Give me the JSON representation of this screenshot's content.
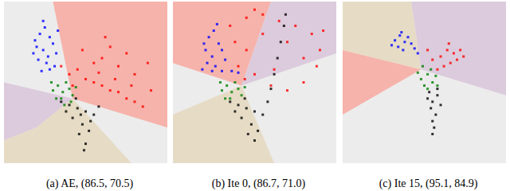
{
  "chart_data": [
    {
      "type": "scatter",
      "title": "(a) AE, (86.5, 70.5)",
      "xlim": [
        0,
        100
      ],
      "ylim": [
        0,
        100
      ],
      "tick_labels": false,
      "grid": false,
      "regions": [
        {
          "color": "#ececec",
          "points": [
            [
              0,
              0
            ],
            [
              100,
              0
            ],
            [
              100,
              100
            ],
            [
              0,
              100
            ]
          ]
        },
        {
          "color": "#f6b3ab",
          "points": [
            [
              30,
              100
            ],
            [
              100,
              100
            ],
            [
              100,
              22
            ],
            [
              42,
              40
            ]
          ]
        },
        {
          "color": "#dccbdc",
          "points": [
            [
              0,
              50
            ],
            [
              42,
              40
            ],
            [
              20,
              22
            ],
            [
              0,
              14
            ]
          ]
        },
        {
          "color": "#e6dcc6",
          "points": [
            [
              0,
              14
            ],
            [
              20,
              22
            ],
            [
              42,
              40
            ],
            [
              78,
              0
            ],
            [
              0,
              0
            ]
          ]
        }
      ],
      "series": [
        {
          "color": "#0000ff",
          "values": [
            [
              22,
              80
            ],
            [
              25,
              84
            ],
            [
              28,
              78
            ],
            [
              20,
              72
            ],
            [
              24,
              70
            ],
            [
              30,
              74
            ],
            [
              21,
              64
            ],
            [
              26,
              62
            ],
            [
              32,
              68
            ],
            [
              23,
              57
            ],
            [
              28,
              58
            ],
            [
              33,
              82
            ],
            [
              19,
              76
            ],
            [
              27,
              66
            ],
            [
              31,
              60
            ],
            [
              24,
              88
            ],
            [
              18,
              68
            ]
          ]
        },
        {
          "color": "#ff0000",
          "values": [
            [
              35,
              60
            ],
            [
              40,
              55
            ],
            [
              45,
              58
            ],
            [
              50,
              52
            ],
            [
              55,
              50
            ],
            [
              60,
              48
            ],
            [
              65,
              45
            ],
            [
              70,
              44
            ],
            [
              75,
              40
            ],
            [
              80,
              38
            ],
            [
              55,
              62
            ],
            [
              60,
              65
            ],
            [
              70,
              60
            ],
            [
              80,
              55
            ],
            [
              90,
              45
            ],
            [
              85,
              35
            ],
            [
              48,
              70
            ],
            [
              65,
              72
            ],
            [
              75,
              68
            ],
            [
              42,
              48
            ],
            [
              88,
              62
            ],
            [
              58,
              56
            ],
            [
              68,
              52
            ],
            [
              78,
              48
            ],
            [
              62,
              78
            ]
          ]
        },
        {
          "color": "#008000",
          "values": [
            [
              30,
              45
            ],
            [
              33,
              48
            ],
            [
              36,
              44
            ],
            [
              40,
              46
            ],
            [
              35,
              40
            ],
            [
              38,
              50
            ],
            [
              42,
              42
            ],
            [
              32,
              40
            ],
            [
              44,
              47
            ],
            [
              29,
              50
            ],
            [
              37,
              36
            ],
            [
              41,
              38
            ]
          ]
        },
        {
          "color": "#000000",
          "values": [
            [
              35,
              38
            ],
            [
              40,
              36
            ],
            [
              45,
              34
            ],
            [
              50,
              32
            ],
            [
              55,
              30
            ],
            [
              42,
              28
            ],
            [
              48,
              24
            ],
            [
              52,
              20
            ],
            [
              46,
              18
            ],
            [
              50,
              12
            ],
            [
              38,
              32
            ],
            [
              58,
              35
            ],
            [
              44,
              40
            ],
            [
              53,
              26
            ],
            [
              49,
              8
            ],
            [
              47,
              30
            ]
          ]
        }
      ]
    },
    {
      "type": "scatter",
      "title": "(b) Ite 0, (86.7, 71.0)",
      "xlim": [
        0,
        100
      ],
      "ylim": [
        0,
        100
      ],
      "tick_labels": false,
      "grid": false,
      "regions": [
        {
          "color": "#ececec",
          "points": [
            [
              0,
              0
            ],
            [
              100,
              0
            ],
            [
              100,
              100
            ],
            [
              0,
              100
            ]
          ]
        },
        {
          "color": "#f6b3ab",
          "points": [
            [
              0,
              100
            ],
            [
              60,
              100
            ],
            [
              42,
              48
            ],
            [
              0,
              62
            ]
          ]
        },
        {
          "color": "#dccbdc",
          "points": [
            [
              60,
              100
            ],
            [
              100,
              100
            ],
            [
              100,
              68
            ],
            [
              42,
              48
            ]
          ]
        },
        {
          "color": "#e6dcc6",
          "points": [
            [
              0,
              30
            ],
            [
              42,
              48
            ],
            [
              62,
              0
            ],
            [
              0,
              0
            ]
          ]
        }
      ],
      "series": [
        {
          "color": "#0000ff",
          "values": [
            [
              22,
              78
            ],
            [
              25,
              82
            ],
            [
              28,
              74
            ],
            [
              20,
              70
            ],
            [
              24,
              66
            ],
            [
              30,
              70
            ],
            [
              21,
              62
            ],
            [
              26,
              60
            ],
            [
              32,
              64
            ],
            [
              18,
              58
            ],
            [
              24,
              57
            ],
            [
              30,
              57
            ],
            [
              36,
              57
            ],
            [
              40,
              56
            ],
            [
              27,
              86
            ],
            [
              19,
              74
            ]
          ]
        },
        {
          "color": "#ff0000",
          "values": [
            [
              35,
              85
            ],
            [
              45,
              90
            ],
            [
              55,
              92
            ],
            [
              65,
              88
            ],
            [
              75,
              85
            ],
            [
              85,
              80
            ],
            [
              90,
              70
            ],
            [
              88,
              60
            ],
            [
              80,
              50
            ],
            [
              70,
              45
            ],
            [
              60,
              48
            ],
            [
              50,
              55
            ],
            [
              40,
              60
            ],
            [
              38,
              75
            ],
            [
              45,
              70
            ],
            [
              55,
              80
            ],
            [
              70,
              75
            ],
            [
              80,
              65
            ],
            [
              50,
              95
            ],
            [
              92,
              82
            ],
            [
              62,
              58
            ],
            [
              44,
              52
            ]
          ]
        },
        {
          "color": "#008000",
          "values": [
            [
              30,
              45
            ],
            [
              33,
              48
            ],
            [
              36,
              44
            ],
            [
              40,
              46
            ],
            [
              35,
              40
            ],
            [
              38,
              50
            ],
            [
              42,
              42
            ],
            [
              32,
              40
            ],
            [
              44,
              47
            ],
            [
              29,
              50
            ]
          ]
        },
        {
          "color": "#000000",
          "values": [
            [
              35,
              38
            ],
            [
              40,
              36
            ],
            [
              45,
              34
            ],
            [
              50,
              32
            ],
            [
              55,
              30
            ],
            [
              42,
              28
            ],
            [
              48,
              24
            ],
            [
              52,
              20
            ],
            [
              46,
              18
            ],
            [
              50,
              14
            ],
            [
              38,
              32
            ],
            [
              58,
              38
            ],
            [
              44,
              40
            ],
            [
              62,
              55
            ],
            [
              64,
              65
            ],
            [
              66,
              75
            ],
            [
              68,
              85
            ],
            [
              69,
              92
            ],
            [
              60,
              46
            ]
          ]
        }
      ]
    },
    {
      "type": "scatter",
      "title": "(c) Ite 15, (95.1, 84.9)",
      "xlim": [
        0,
        100
      ],
      "ylim": [
        0,
        100
      ],
      "tick_labels": false,
      "grid": false,
      "regions": [
        {
          "color": "#ececec",
          "points": [
            [
              0,
              0
            ],
            [
              100,
              0
            ],
            [
              100,
              100
            ],
            [
              0,
              100
            ]
          ]
        },
        {
          "color": "#e6dcc6",
          "points": [
            [
              0,
              100
            ],
            [
              42,
              100
            ],
            [
              48,
              58
            ],
            [
              0,
              70
            ]
          ]
        },
        {
          "color": "#dccbdc",
          "points": [
            [
              42,
              100
            ],
            [
              100,
              100
            ],
            [
              100,
              42
            ],
            [
              48,
              58
            ]
          ]
        },
        {
          "color": "#f6b3ab",
          "points": [
            [
              0,
              70
            ],
            [
              48,
              58
            ],
            [
              0,
              30
            ]
          ]
        }
      ],
      "series": [
        {
          "color": "#0000ff",
          "values": [
            [
              32,
              76
            ],
            [
              35,
              79
            ],
            [
              38,
              75
            ],
            [
              34,
              72
            ],
            [
              40,
              78
            ],
            [
              37,
              70
            ],
            [
              42,
              74
            ],
            [
              30,
              73
            ],
            [
              44,
              71
            ],
            [
              36,
              81
            ],
            [
              46,
              68
            ]
          ]
        },
        {
          "color": "#ff0000",
          "values": [
            [
              60,
              66
            ],
            [
              64,
              70
            ],
            [
              68,
              68
            ],
            [
              66,
              62
            ],
            [
              70,
              64
            ],
            [
              62,
              60
            ],
            [
              72,
              70
            ],
            [
              58,
              58
            ],
            [
              74,
              66
            ],
            [
              65,
              74
            ],
            [
              55,
              64
            ],
            [
              52,
              70
            ]
          ]
        },
        {
          "color": "#008000",
          "values": [
            [
              48,
              52
            ],
            [
              52,
              55
            ],
            [
              55,
              50
            ],
            [
              50,
              48
            ],
            [
              54,
              58
            ],
            [
              57,
              54
            ],
            [
              46,
              56
            ],
            [
              52,
              46
            ],
            [
              58,
              48
            ],
            [
              49,
              60
            ]
          ]
        },
        {
          "color": "#000000",
          "values": [
            [
              52,
              40
            ],
            [
              55,
              38
            ],
            [
              58,
              42
            ],
            [
              54,
              34
            ],
            [
              57,
              30
            ],
            [
              55,
              26
            ],
            [
              56,
              22
            ],
            [
              53,
              44
            ],
            [
              60,
              36
            ],
            [
              58,
              46
            ],
            [
              55,
              18
            ]
          ]
        }
      ]
    }
  ]
}
